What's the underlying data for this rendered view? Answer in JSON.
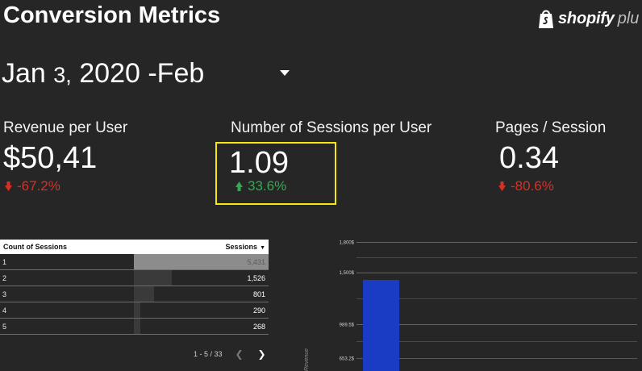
{
  "header": {
    "title": "Conversion Metrics",
    "logo_word": "shopify",
    "logo_suffix": "plu"
  },
  "date_range": {
    "start_month": "Jan",
    "start_day": "3,",
    "start_year": "2020 -",
    "end_month": "Feb"
  },
  "kpis": [
    {
      "label": "Revenue per User",
      "value": "$50,41",
      "delta": "-67.2%",
      "direction": "down"
    },
    {
      "label": "Number of Sessions per User",
      "value": "1.09",
      "delta": "33.6%",
      "direction": "up"
    },
    {
      "label": "Pages / Session",
      "value": "0.34",
      "delta": "-80.6%",
      "direction": "down"
    }
  ],
  "table": {
    "col_dimension": "Count of Sessions",
    "col_metric": "Sessions",
    "rows": [
      {
        "index": "1",
        "value": "5,431",
        "fraction": 1.0
      },
      {
        "index": "2",
        "value": "1,526",
        "fraction": 0.28
      },
      {
        "index": "3",
        "value": "801",
        "fraction": 0.15
      },
      {
        "index": "4",
        "value": "290",
        "fraction": 0.05
      },
      {
        "index": "5",
        "value": "268",
        "fraction": 0.05
      }
    ],
    "pagination": "1 - 5 / 33"
  },
  "colors": {
    "background": "#262626",
    "bar": "#1a3bc4",
    "positive": "#34a853",
    "negative": "#d93025",
    "highlight": "#f5e614"
  },
  "chart_data": {
    "type": "bar",
    "ylabel": "Revenue",
    "yticks": [
      "1,800$",
      "1,500$",
      "989.5$",
      "653.2$"
    ],
    "ytick_values": [
      1800,
      1500,
      989.5,
      653.2
    ],
    "ylim": [
      450,
      1900
    ],
    "values": [
      1430
    ],
    "grid": true
  }
}
